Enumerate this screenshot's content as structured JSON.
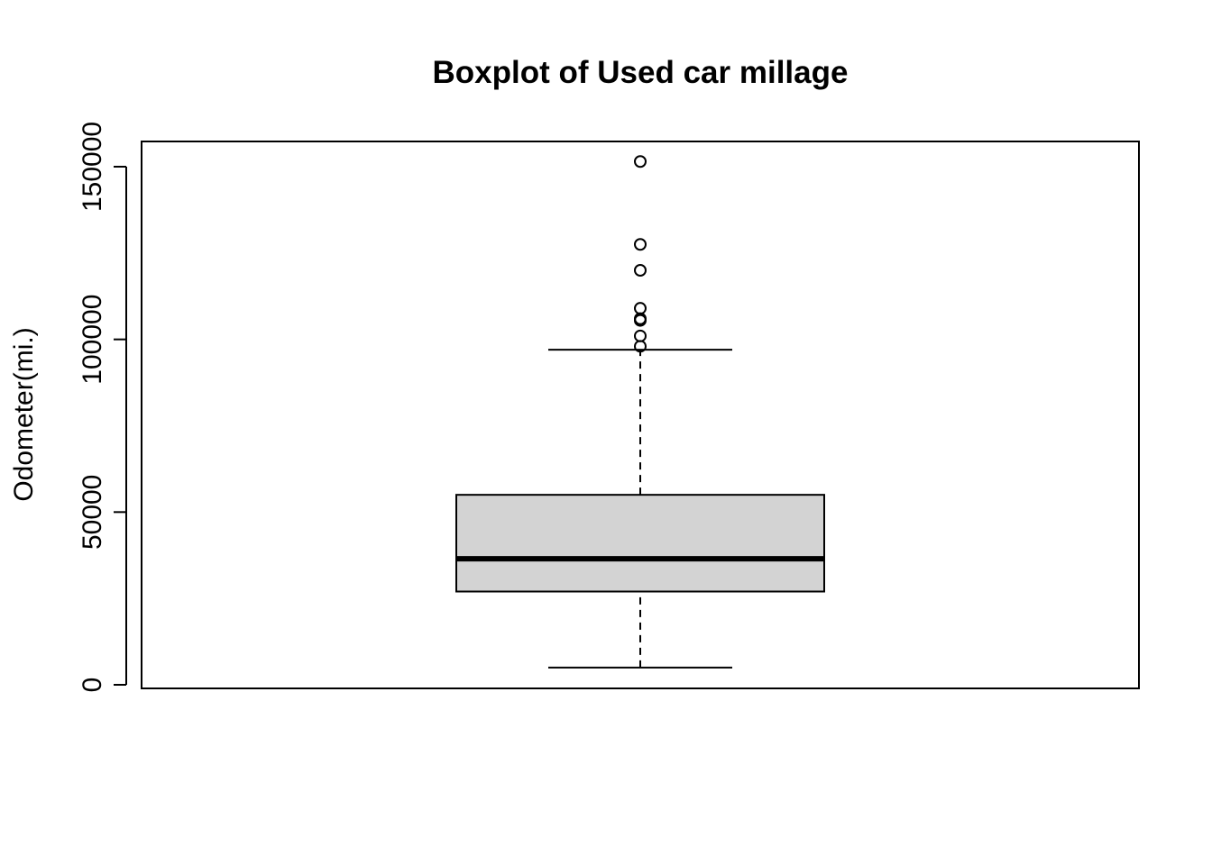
{
  "chart_data": {
    "type": "boxplot",
    "title": "Boxplot of Used car millage",
    "ylabel": "Odometer(mi.)",
    "xlabel": "",
    "ylim": [
      0,
      158000
    ],
    "yticks": [
      0,
      50000,
      100000,
      150000
    ],
    "tick_labels": [
      "0",
      "50000",
      "100000",
      "150000"
    ],
    "grid": false,
    "box": {
      "whisker_low": 5000,
      "q1": 27000,
      "median": 36500,
      "q3": 55000,
      "whisker_high": 97000,
      "outliers": [
        98000,
        101000,
        105500,
        106000,
        109000,
        120000,
        127500,
        151500
      ]
    },
    "colors": {
      "box_fill": "#d3d3d3",
      "line": "#000000"
    }
  }
}
